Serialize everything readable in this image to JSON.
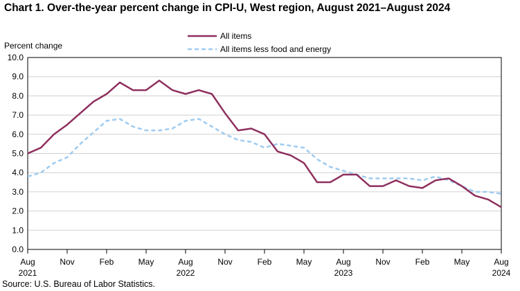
{
  "chart_data": {
    "type": "line",
    "title": "Chart 1. Over-the-year percent change in CPI-U, West region, August 2021–August 2024",
    "ylabel": "Percent change",
    "xlabel": "",
    "ylim": [
      0.0,
      10.0
    ],
    "yticks": [
      "0.0",
      "1.0",
      "2.0",
      "3.0",
      "4.0",
      "5.0",
      "6.0",
      "7.0",
      "8.0",
      "9.0",
      "10.0"
    ],
    "ytick_values": [
      0,
      1,
      2,
      3,
      4,
      5,
      6,
      7,
      8,
      9,
      10
    ],
    "grid": true,
    "legend_position": "top-center",
    "x": [
      "Aug 2021",
      "Sep 2021",
      "Oct 2021",
      "Nov 2021",
      "Dec 2021",
      "Jan 2022",
      "Feb 2022",
      "Mar 2022",
      "Apr 2022",
      "May 2022",
      "Jun 2022",
      "Jul 2022",
      "Aug 2022",
      "Sep 2022",
      "Oct 2022",
      "Nov 2022",
      "Dec 2022",
      "Jan 2023",
      "Feb 2023",
      "Mar 2023",
      "Apr 2023",
      "May 2023",
      "Jun 2023",
      "Jul 2023",
      "Aug 2023",
      "Sep 2023",
      "Oct 2023",
      "Nov 2023",
      "Dec 2023",
      "Jan 2024",
      "Feb 2024",
      "Mar 2024",
      "Apr 2024",
      "May 2024",
      "Jun 2024",
      "Jul 2024",
      "Aug 2024"
    ],
    "xtick_labels": [
      {
        "index": 0,
        "month": "Aug",
        "year": "2021"
      },
      {
        "index": 3,
        "month": "Nov",
        "year": ""
      },
      {
        "index": 6,
        "month": "Feb",
        "year": ""
      },
      {
        "index": 9,
        "month": "May",
        "year": ""
      },
      {
        "index": 12,
        "month": "Aug",
        "year": "2022"
      },
      {
        "index": 15,
        "month": "Nov",
        "year": ""
      },
      {
        "index": 18,
        "month": "Feb",
        "year": ""
      },
      {
        "index": 21,
        "month": "May",
        "year": ""
      },
      {
        "index": 24,
        "month": "Aug",
        "year": "2023"
      },
      {
        "index": 27,
        "month": "Nov",
        "year": ""
      },
      {
        "index": 30,
        "month": "Feb",
        "year": ""
      },
      {
        "index": 33,
        "month": "May",
        "year": ""
      },
      {
        "index": 36,
        "month": "Aug",
        "year": "2024"
      }
    ],
    "series": [
      {
        "name": "All items",
        "color": "#8e2f5e",
        "style": "solid",
        "values": [
          5.0,
          5.3,
          6.0,
          6.5,
          7.1,
          7.7,
          8.1,
          8.7,
          8.3,
          8.3,
          8.8,
          8.3,
          8.1,
          8.3,
          8.1,
          7.1,
          6.2,
          6.3,
          6.0,
          5.1,
          4.9,
          4.5,
          3.5,
          3.5,
          3.9,
          3.9,
          3.3,
          3.3,
          3.6,
          3.3,
          3.2,
          3.6,
          3.7,
          3.3,
          2.8,
          2.6,
          2.2
        ]
      },
      {
        "name": "All items less food and energy",
        "color": "#9ecbf0",
        "style": "dashed",
        "values": [
          3.8,
          4.0,
          4.5,
          4.8,
          5.5,
          6.1,
          6.7,
          6.8,
          6.4,
          6.2,
          6.2,
          6.3,
          6.7,
          6.8,
          6.4,
          6.0,
          5.7,
          5.6,
          5.3,
          5.5,
          5.4,
          5.3,
          4.7,
          4.3,
          4.1,
          3.9,
          3.7,
          3.7,
          3.7,
          3.7,
          3.6,
          3.8,
          3.6,
          3.3,
          3.0,
          3.0,
          2.9
        ]
      }
    ]
  },
  "source": "Source: U.S. Bureau of Labor Statistics."
}
